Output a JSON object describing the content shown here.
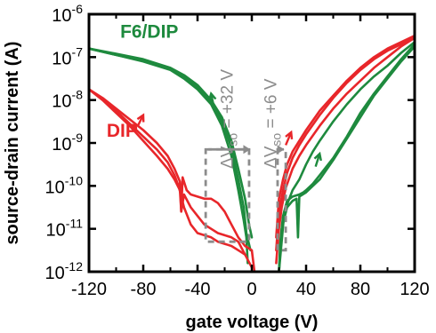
{
  "chart_data": {
    "type": "line",
    "xlabel": "gate voltage (V)",
    "ylabel": "source-drain current (A)",
    "xlim": [
      -120,
      120
    ],
    "ylim_log10": [
      -12,
      -6
    ],
    "y_scale": "log",
    "grid": false,
    "x_ticks": [
      "-120",
      "-80",
      "-40",
      "0",
      "40",
      "80",
      "120"
    ],
    "x_tick_values": [
      -120,
      -80,
      -40,
      0,
      40,
      80,
      120
    ],
    "y_ticks": [
      {
        "base": "10",
        "exp": "-12"
      },
      {
        "base": "10",
        "exp": "-11"
      },
      {
        "base": "10",
        "exp": "-10"
      },
      {
        "base": "10",
        "exp": "-9"
      },
      {
        "base": "10",
        "exp": "-8"
      },
      {
        "base": "10",
        "exp": "-7"
      },
      {
        "base": "10",
        "exp": "-6"
      }
    ],
    "y_tick_log10": [
      -12,
      -11,
      -10,
      -9,
      -8,
      -7,
      -6
    ],
    "series": [
      {
        "name": "F6/DIP",
        "color": "#1e8a3e",
        "curves": [
          [
            [
              -120,
              -6.8
            ],
            [
              -100,
              -6.92
            ],
            [
              -80,
              -7.05
            ],
            [
              -60,
              -7.25
            ],
            [
              -50,
              -7.42
            ],
            [
              -40,
              -7.65
            ],
            [
              -30,
              -8.0
            ],
            [
              -22,
              -8.4
            ],
            [
              -15,
              -8.95
            ],
            [
              -10,
              -9.6
            ],
            [
              -5,
              -10.3
            ],
            [
              -2,
              -10.9
            ],
            [
              0,
              -11.2
            ]
          ],
          [
            [
              -120,
              -6.8
            ],
            [
              -100,
              -6.95
            ],
            [
              -80,
              -7.1
            ],
            [
              -60,
              -7.3
            ],
            [
              -50,
              -7.5
            ],
            [
              -40,
              -7.75
            ],
            [
              -30,
              -8.1
            ],
            [
              -22,
              -8.6
            ],
            [
              -15,
              -9.3
            ],
            [
              -10,
              -10.1
            ],
            [
              -6,
              -10.8
            ],
            [
              -4,
              -11.2
            ],
            [
              -3,
              -11.8
            ]
          ],
          [
            [
              -120,
              -6.8
            ],
            [
              -100,
              -6.95
            ],
            [
              -80,
              -7.08
            ],
            [
              -60,
              -7.28
            ],
            [
              -50,
              -7.45
            ],
            [
              -40,
              -7.7
            ],
            [
              -30,
              -8.05
            ],
            [
              -22,
              -8.5
            ],
            [
              -15,
              -9.1
            ],
            [
              -10,
              -9.85
            ],
            [
              -6,
              -10.5
            ],
            [
              -4,
              -11.1
            ],
            [
              -1,
              -11.5
            ]
          ],
          [
            [
              20,
              -12.0
            ],
            [
              21,
              -11.3
            ],
            [
              23,
              -10.7
            ],
            [
              26,
              -10.35
            ],
            [
              30,
              -10.25
            ],
            [
              35,
              -10.2
            ],
            [
              38,
              -10.15
            ],
            [
              40,
              -10.1
            ],
            [
              45,
              -9.95
            ],
            [
              50,
              -9.75
            ],
            [
              60,
              -9.35
            ],
            [
              70,
              -8.85
            ],
            [
              80,
              -8.3
            ],
            [
              90,
              -7.85
            ],
            [
              100,
              -7.45
            ],
            [
              110,
              -7.05
            ],
            [
              120,
              -6.7
            ]
          ],
          [
            [
              20,
              -12.0
            ],
            [
              22,
              -11.0
            ],
            [
              26,
              -10.5
            ],
            [
              30,
              -10.35
            ],
            [
              33,
              -10.3
            ],
            [
              34,
              -11.2
            ],
            [
              35,
              -10.25
            ],
            [
              40,
              -10.15
            ],
            [
              50,
              -9.85
            ],
            [
              60,
              -9.4
            ],
            [
              70,
              -8.9
            ],
            [
              80,
              -8.4
            ],
            [
              90,
              -7.9
            ],
            [
              100,
              -7.5
            ],
            [
              110,
              -7.1
            ],
            [
              120,
              -6.75
            ]
          ],
          [
            [
              20,
              -12.0
            ],
            [
              24,
              -10.6
            ],
            [
              30,
              -10.1
            ],
            [
              35,
              -9.85
            ],
            [
              40,
              -9.5
            ],
            [
              45,
              -9.2
            ],
            [
              50,
              -8.95
            ],
            [
              60,
              -8.5
            ],
            [
              70,
              -8.1
            ],
            [
              80,
              -7.75
            ],
            [
              90,
              -7.45
            ],
            [
              100,
              -7.2
            ],
            [
              110,
              -6.9
            ],
            [
              120,
              -6.65
            ]
          ]
        ]
      },
      {
        "name": "DIP",
        "color": "#e8262a",
        "curves": [
          [
            [
              -120,
              -7.75
            ],
            [
              -110,
              -7.95
            ],
            [
              -100,
              -8.2
            ],
            [
              -90,
              -8.45
            ],
            [
              -80,
              -8.7
            ],
            [
              -70,
              -9.0
            ],
            [
              -62,
              -9.3
            ],
            [
              -57,
              -9.6
            ],
            [
              -53,
              -9.9
            ],
            [
              -52,
              -10.6
            ],
            [
              -51,
              -9.8
            ],
            [
              -48,
              -10.1
            ],
            [
              -45,
              -10.2
            ],
            [
              -40,
              -10.25
            ],
            [
              -35,
              -10.3
            ],
            [
              -30,
              -10.3
            ],
            [
              -25,
              -10.4
            ],
            [
              -20,
              -10.6
            ],
            [
              -15,
              -10.9
            ],
            [
              -10,
              -11.2
            ],
            [
              -5,
              -11.4
            ],
            [
              0,
              -11.5
            ],
            [
              2,
              -12.0
            ]
          ],
          [
            [
              -120,
              -7.75
            ],
            [
              -110,
              -8.0
            ],
            [
              -100,
              -8.3
            ],
            [
              -90,
              -8.6
            ],
            [
              -80,
              -8.95
            ],
            [
              -70,
              -9.3
            ],
            [
              -62,
              -9.6
            ],
            [
              -57,
              -9.85
            ],
            [
              -53,
              -10.1
            ],
            [
              -52,
              -10.6
            ],
            [
              -50,
              -10.2
            ],
            [
              -45,
              -10.5
            ],
            [
              -40,
              -10.7
            ],
            [
              -35,
              -10.9
            ],
            [
              -30,
              -11.0
            ],
            [
              -25,
              -11.1
            ],
            [
              -20,
              -11.15
            ],
            [
              -15,
              -11.2
            ],
            [
              -10,
              -11.3
            ],
            [
              -5,
              -11.6
            ],
            [
              0,
              -11.9
            ]
          ],
          [
            [
              -120,
              -7.75
            ],
            [
              -110,
              -7.97
            ],
            [
              -100,
              -8.25
            ],
            [
              -90,
              -8.55
            ],
            [
              -80,
              -8.85
            ],
            [
              -70,
              -9.15
            ],
            [
              -62,
              -9.45
            ],
            [
              -57,
              -9.75
            ],
            [
              -54,
              -10.0
            ],
            [
              -50,
              -10.5
            ],
            [
              -45,
              -10.9
            ],
            [
              -40,
              -11.1
            ],
            [
              -35,
              -11.15
            ],
            [
              -30,
              -11.2
            ],
            [
              -25,
              -11.3
            ],
            [
              -20,
              -11.35
            ],
            [
              -15,
              -11.4
            ],
            [
              -10,
              -11.5
            ],
            [
              -5,
              -11.6
            ]
          ],
          [
            [
              18,
              -11.8
            ],
            [
              20,
              -11.0
            ],
            [
              22,
              -10.5
            ],
            [
              25,
              -10.05
            ],
            [
              30,
              -9.6
            ],
            [
              35,
              -9.3
            ],
            [
              40,
              -9.05
            ],
            [
              50,
              -8.6
            ],
            [
              60,
              -8.2
            ],
            [
              70,
              -7.85
            ],
            [
              80,
              -7.55
            ],
            [
              90,
              -7.25
            ],
            [
              100,
              -7.0
            ],
            [
              110,
              -6.75
            ],
            [
              120,
              -6.55
            ]
          ],
          [
            [
              18,
              -11.5
            ],
            [
              20,
              -10.6
            ],
            [
              23,
              -10.1
            ],
            [
              26,
              -9.7
            ],
            [
              30,
              -9.35
            ],
            [
              35,
              -9.05
            ],
            [
              40,
              -8.8
            ],
            [
              50,
              -8.35
            ],
            [
              60,
              -7.95
            ],
            [
              70,
              -7.6
            ],
            [
              80,
              -7.3
            ],
            [
              90,
              -7.05
            ],
            [
              100,
              -6.85
            ],
            [
              110,
              -6.7
            ],
            [
              120,
              -6.55
            ]
          ],
          [
            [
              18,
              -11.2
            ],
            [
              20,
              -10.3
            ],
            [
              23,
              -9.85
            ],
            [
              26,
              -9.5
            ],
            [
              30,
              -9.2
            ],
            [
              35,
              -8.95
            ],
            [
              40,
              -8.7
            ],
            [
              50,
              -8.25
            ],
            [
              60,
              -7.9
            ],
            [
              70,
              -7.55
            ],
            [
              80,
              -7.25
            ],
            [
              90,
              -7.0
            ],
            [
              100,
              -6.8
            ],
            [
              110,
              -6.65
            ],
            [
              120,
              -6.5
            ]
          ]
        ]
      }
    ],
    "arrows": [
      {
        "color": "#1e8a3e",
        "from": [
          -28,
          -8.15
        ],
        "to": [
          -30,
          -7.85
        ]
      },
      {
        "color": "#1e8a3e",
        "from": [
          47,
          -9.55
        ],
        "to": [
          50,
          -9.25
        ]
      },
      {
        "color": "#e8262a",
        "from": [
          -84,
          -8.6
        ],
        "to": [
          -80,
          -8.35
        ]
      },
      {
        "color": "#e8262a",
        "from": [
          25,
          -9.05
        ],
        "to": [
          29,
          -8.75
        ]
      }
    ],
    "annotations": [
      {
        "name": "shift-F6DIP",
        "prefix": "ΔV",
        "sub": "so",
        "suffix": " = +32 V",
        "x": -14,
        "y_log10": -9.6
      },
      {
        "name": "shift-DIP",
        "prefix": "ΔV",
        "sub": "so",
        "suffix": " = +6 V",
        "x": 18,
        "y_log10": -9.6
      }
    ],
    "dashed_boxes": [
      {
        "x0": -34,
        "x1": -2,
        "ylog_top": -9.15,
        "ylog_bot": -11.3
      },
      {
        "x0": 19,
        "x1": 25,
        "ylog_top": -9.15,
        "ylog_bot": -11.5
      }
    ],
    "box_arrows": [
      {
        "x_from": -32,
        "x_to": -1,
        "ylog": -9.15
      },
      {
        "x_from": 20,
        "x_to": 24,
        "ylog": -9.15
      }
    ],
    "series_label_positions": [
      {
        "name": "F6/DIP",
        "x": -97,
        "ylog": -6.55
      },
      {
        "name": "DIP",
        "x": -107,
        "ylog": -8.85
      }
    ]
  }
}
